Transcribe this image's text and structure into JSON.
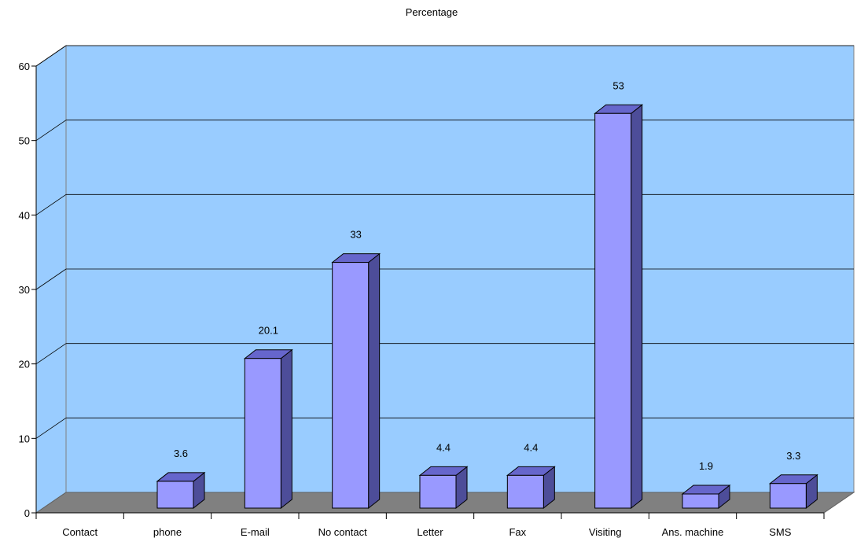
{
  "chart_data": {
    "type": "bar",
    "title": "Percentage",
    "categories": [
      "Contact",
      "phone",
      "E-mail",
      "No contact",
      "Letter",
      "Fax",
      "Visiting",
      "Ans. machine",
      "SMS"
    ],
    "values": [
      null,
      3.6,
      20.1,
      33,
      4.4,
      4.4,
      53,
      1.9,
      3.3
    ],
    "data_labels": [
      "",
      "3.6",
      "20.1",
      "33",
      "4.4",
      "4.4",
      "53",
      "1.9",
      "3.3"
    ],
    "y_ticks": [
      "0",
      "10",
      "20",
      "30",
      "40",
      "50",
      "60"
    ],
    "ylim": [
      0,
      60
    ],
    "grid": true,
    "style": "3d",
    "colors": {
      "wall": "#99ccff",
      "floor": "#808080",
      "bar_front": "#9999ff",
      "bar_top": "#6666cc",
      "bar_side": "#4d4d99",
      "grid": "#000000"
    }
  }
}
